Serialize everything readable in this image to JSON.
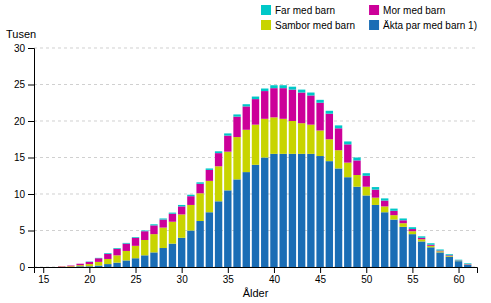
{
  "chart_data": {
    "type": "bar",
    "stacked": true,
    "x": [
      15,
      16,
      17,
      18,
      19,
      20,
      21,
      22,
      23,
      24,
      25,
      26,
      27,
      28,
      29,
      30,
      31,
      32,
      33,
      34,
      35,
      36,
      37,
      38,
      39,
      40,
      41,
      42,
      43,
      44,
      45,
      46,
      47,
      48,
      49,
      50,
      51,
      52,
      53,
      54,
      55,
      56,
      57,
      58,
      59,
      60,
      61
    ],
    "series": [
      {
        "name": "Äkta par med barn 1)",
        "color": "#1a6db5",
        "values": [
          0.0,
          0.0,
          0.0,
          0.0,
          0.1,
          0.1,
          0.2,
          0.4,
          0.6,
          0.9,
          1.2,
          1.6,
          2.0,
          2.6,
          3.2,
          4.0,
          5.0,
          6.3,
          7.5,
          9.0,
          10.5,
          12.0,
          13.0,
          14.0,
          15.0,
          15.5,
          15.5,
          15.5,
          15.5,
          15.5,
          15.2,
          14.5,
          13.5,
          12.3,
          11.0,
          9.8,
          8.5,
          7.5,
          6.5,
          5.5,
          4.5,
          3.5,
          2.7,
          2.0,
          1.4,
          0.8,
          0.3
        ]
      },
      {
        "name": "Sambor med barn",
        "color": "#c8d400",
        "values": [
          0.0,
          0.0,
          0.05,
          0.1,
          0.15,
          0.3,
          0.5,
          0.7,
          1.0,
          1.3,
          1.7,
          2.1,
          2.5,
          2.8,
          3.0,
          3.2,
          3.5,
          3.8,
          4.3,
          4.8,
          5.3,
          5.8,
          5.8,
          5.5,
          5.3,
          5.0,
          4.8,
          4.5,
          4.2,
          4.0,
          3.5,
          3.0,
          2.5,
          2.0,
          1.6,
          1.2,
          1.0,
          0.8,
          0.6,
          0.5,
          0.4,
          0.3,
          0.2,
          0.15,
          0.1,
          0.05,
          0.05
        ]
      },
      {
        "name": "Mor med barn",
        "color": "#cc0099",
        "values": [
          0.0,
          0.0,
          0.05,
          0.1,
          0.2,
          0.3,
          0.5,
          0.7,
          0.9,
          1.0,
          1.1,
          1.2,
          1.2,
          1.1,
          1.1,
          1.1,
          1.2,
          1.3,
          1.5,
          1.8,
          2.2,
          2.8,
          3.2,
          3.5,
          3.8,
          4.0,
          4.2,
          4.3,
          4.2,
          4.0,
          3.8,
          3.5,
          3.0,
          2.5,
          2.0,
          1.5,
          1.1,
          0.8,
          0.6,
          0.4,
          0.3,
          0.2,
          0.15,
          0.1,
          0.1,
          0.05,
          0.05
        ]
      },
      {
        "name": "Far med barn",
        "color": "#00c8c8",
        "values": [
          0.0,
          0.0,
          0.0,
          0.0,
          0.0,
          0.05,
          0.05,
          0.1,
          0.1,
          0.1,
          0.1,
          0.1,
          0.15,
          0.15,
          0.15,
          0.2,
          0.2,
          0.2,
          0.2,
          0.25,
          0.3,
          0.3,
          0.3,
          0.35,
          0.35,
          0.4,
          0.4,
          0.4,
          0.4,
          0.4,
          0.4,
          0.4,
          0.4,
          0.4,
          0.4,
          0.35,
          0.35,
          0.3,
          0.3,
          0.25,
          0.25,
          0.2,
          0.2,
          0.15,
          0.15,
          0.1,
          0.1
        ]
      }
    ],
    "xlabel": "Ålder",
    "ylabel": "Tusen",
    "xlim": [
      14,
      62
    ],
    "xticks": [
      15,
      20,
      25,
      30,
      35,
      40,
      45,
      50,
      55,
      60
    ],
    "ylim": [
      0,
      30
    ],
    "yticks": [
      0,
      5,
      10,
      15,
      20,
      25,
      30
    ],
    "grid": true,
    "legend": "upper right"
  }
}
